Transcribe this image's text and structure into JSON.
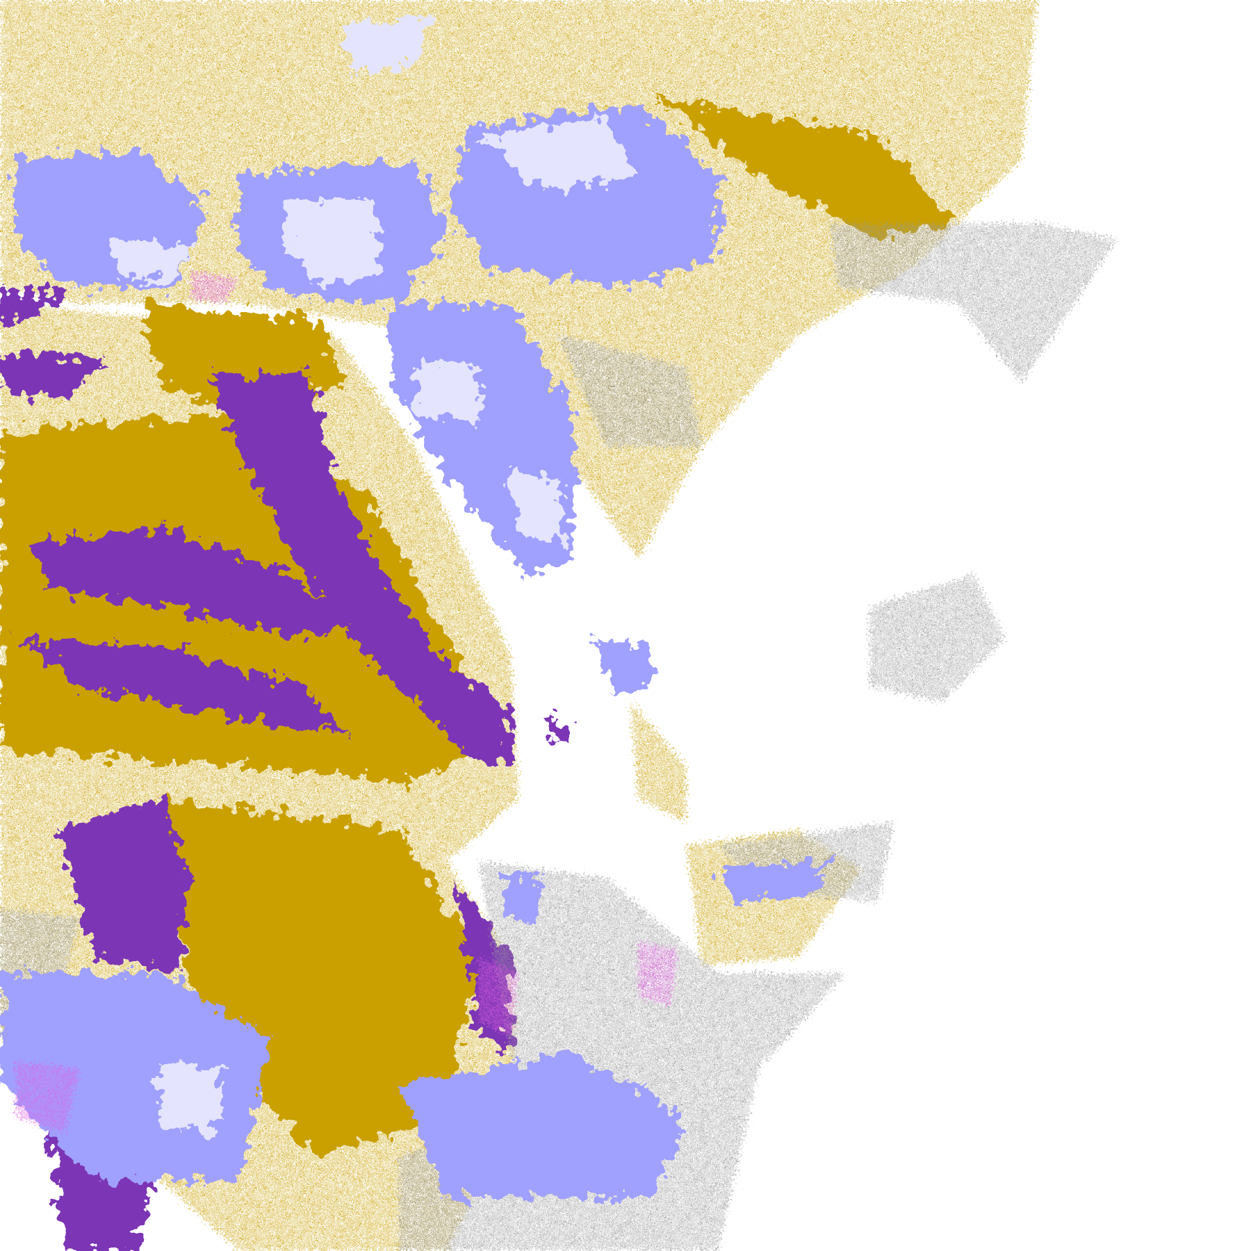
{
  "image": {
    "kind": "satellite cloud classification imagery",
    "background_color": "#ffffff",
    "palette": {
      "gold": "#c9a000",
      "purple": "#7b35b5",
      "lavender": "#a0a0ff",
      "light_lavender": "#e4e4ff",
      "gray": "#9a9a9a",
      "magenta": "#e060e0"
    }
  }
}
